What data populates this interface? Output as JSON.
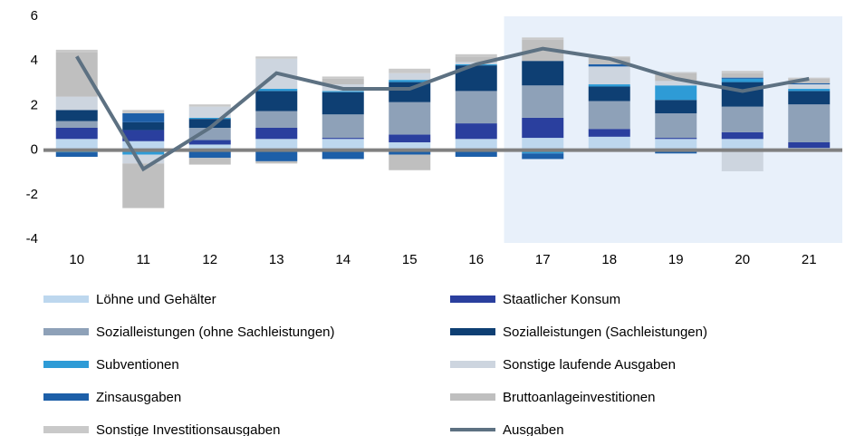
{
  "chart_data": {
    "type": "stacked_bar_line",
    "categories": [
      "10",
      "11",
      "12",
      "13",
      "14",
      "15",
      "16",
      "17",
      "18",
      "19",
      "20",
      "21"
    ],
    "ylim": [
      -4,
      6
    ],
    "yticks": [
      -4,
      -2,
      0,
      2,
      4,
      6
    ],
    "series": [
      {
        "name": "Löhne und Gehälter",
        "color": "#bdd7ee",
        "values": [
          0.5,
          0.4,
          0.25,
          0.5,
          0.5,
          0.35,
          0.5,
          0.55,
          0.6,
          0.5,
          0.5,
          0.1
        ]
      },
      {
        "name": "Staatlicher Konsum",
        "color": "#2a3f9e",
        "values": [
          0.5,
          0.5,
          0.2,
          0.5,
          0.05,
          0.35,
          0.7,
          0.9,
          0.35,
          0.05,
          0.3,
          0.25
        ]
      },
      {
        "name": "Sozialleistungen (ohne Sachleistungen)",
        "color": "#8ea1b8",
        "values": [
          0.3,
          0.0,
          0.55,
          0.75,
          1.05,
          1.45,
          1.45,
          1.45,
          1.25,
          1.1,
          1.15,
          1.7
        ]
      },
      {
        "name": "Sozialleistungen (Sachleistungen)",
        "color": "#0e3f73",
        "values": [
          0.5,
          0.35,
          0.4,
          0.9,
          1.0,
          0.9,
          1.15,
          1.1,
          0.65,
          0.6,
          1.1,
          0.6
        ]
      },
      {
        "name": "Subventionen",
        "color": "#2e9bd6",
        "values": [
          -0.1,
          -0.2,
          0.05,
          0.1,
          0.05,
          0.1,
          0.05,
          -0.15,
          0.1,
          0.65,
          0.15,
          0.1
        ]
      },
      {
        "name": "Sonstige laufende Ausgaben",
        "color": "#cdd5df",
        "values": [
          0.6,
          -0.4,
          0.5,
          1.35,
          0.3,
          0.3,
          0.1,
          0.0,
          0.8,
          0.2,
          -0.95,
          0.2
        ]
      },
      {
        "name": "Zinsausgaben",
        "color": "#1d5fa8",
        "values": [
          -0.2,
          0.4,
          -0.35,
          -0.5,
          -0.4,
          -0.2,
          -0.3,
          -0.25,
          0.1,
          -0.15,
          0.05,
          0.05
        ]
      },
      {
        "name": "Bruttoanlageinvestitionen",
        "color": "#bfbfbf",
        "values": [
          2.0,
          -2.0,
          -0.3,
          -0.1,
          0.25,
          -0.7,
          0.25,
          0.95,
          0.3,
          0.35,
          0.2,
          0.2
        ]
      },
      {
        "name": "Sonstige Investitionsausgaben",
        "color": "#c9c9c9",
        "values": [
          0.1,
          0.15,
          0.1,
          0.1,
          0.1,
          0.2,
          0.1,
          0.1,
          0.05,
          0.05,
          0.1,
          0.05
        ]
      }
    ],
    "line": {
      "name": "Ausgaben",
      "color": "#5d7182",
      "values": [
        4.2,
        -0.85,
        1.0,
        3.45,
        2.75,
        2.75,
        3.85,
        4.55,
        4.1,
        3.2,
        2.65,
        3.2
      ]
    }
  }
}
